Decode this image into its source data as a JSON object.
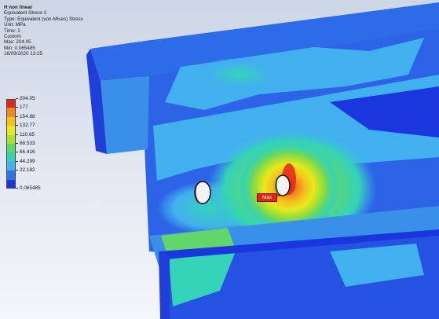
{
  "result_info": {
    "title": "H non linear",
    "result_name": "Equivalent Stress 2",
    "result_type": "Type: Equivalent (von-Mises) Stress",
    "unit": "Unit: MPa",
    "time": "Time: 1",
    "range_mode": "Custom",
    "max_line": "Max: 204.05",
    "min_line": "Min: 0.065485",
    "timestamp": "16/09/2020 13:25"
  },
  "legend": {
    "values": [
      "204.05",
      "177",
      "154.88",
      "132.77",
      "110.65",
      "88.533",
      "66.416",
      "44.299",
      "22.182",
      "0.065485"
    ],
    "colors": [
      "#e5261a",
      "#f08a1e",
      "#f5c21c",
      "#e8e81e",
      "#a6e030",
      "#62d66a",
      "#34d3b8",
      "#42b0ee",
      "#2f73ea",
      "#1a36dd"
    ]
  },
  "max_marker": {
    "label": "Max"
  },
  "icons": {
    "max_marker_leader": "leader-line-icon"
  }
}
